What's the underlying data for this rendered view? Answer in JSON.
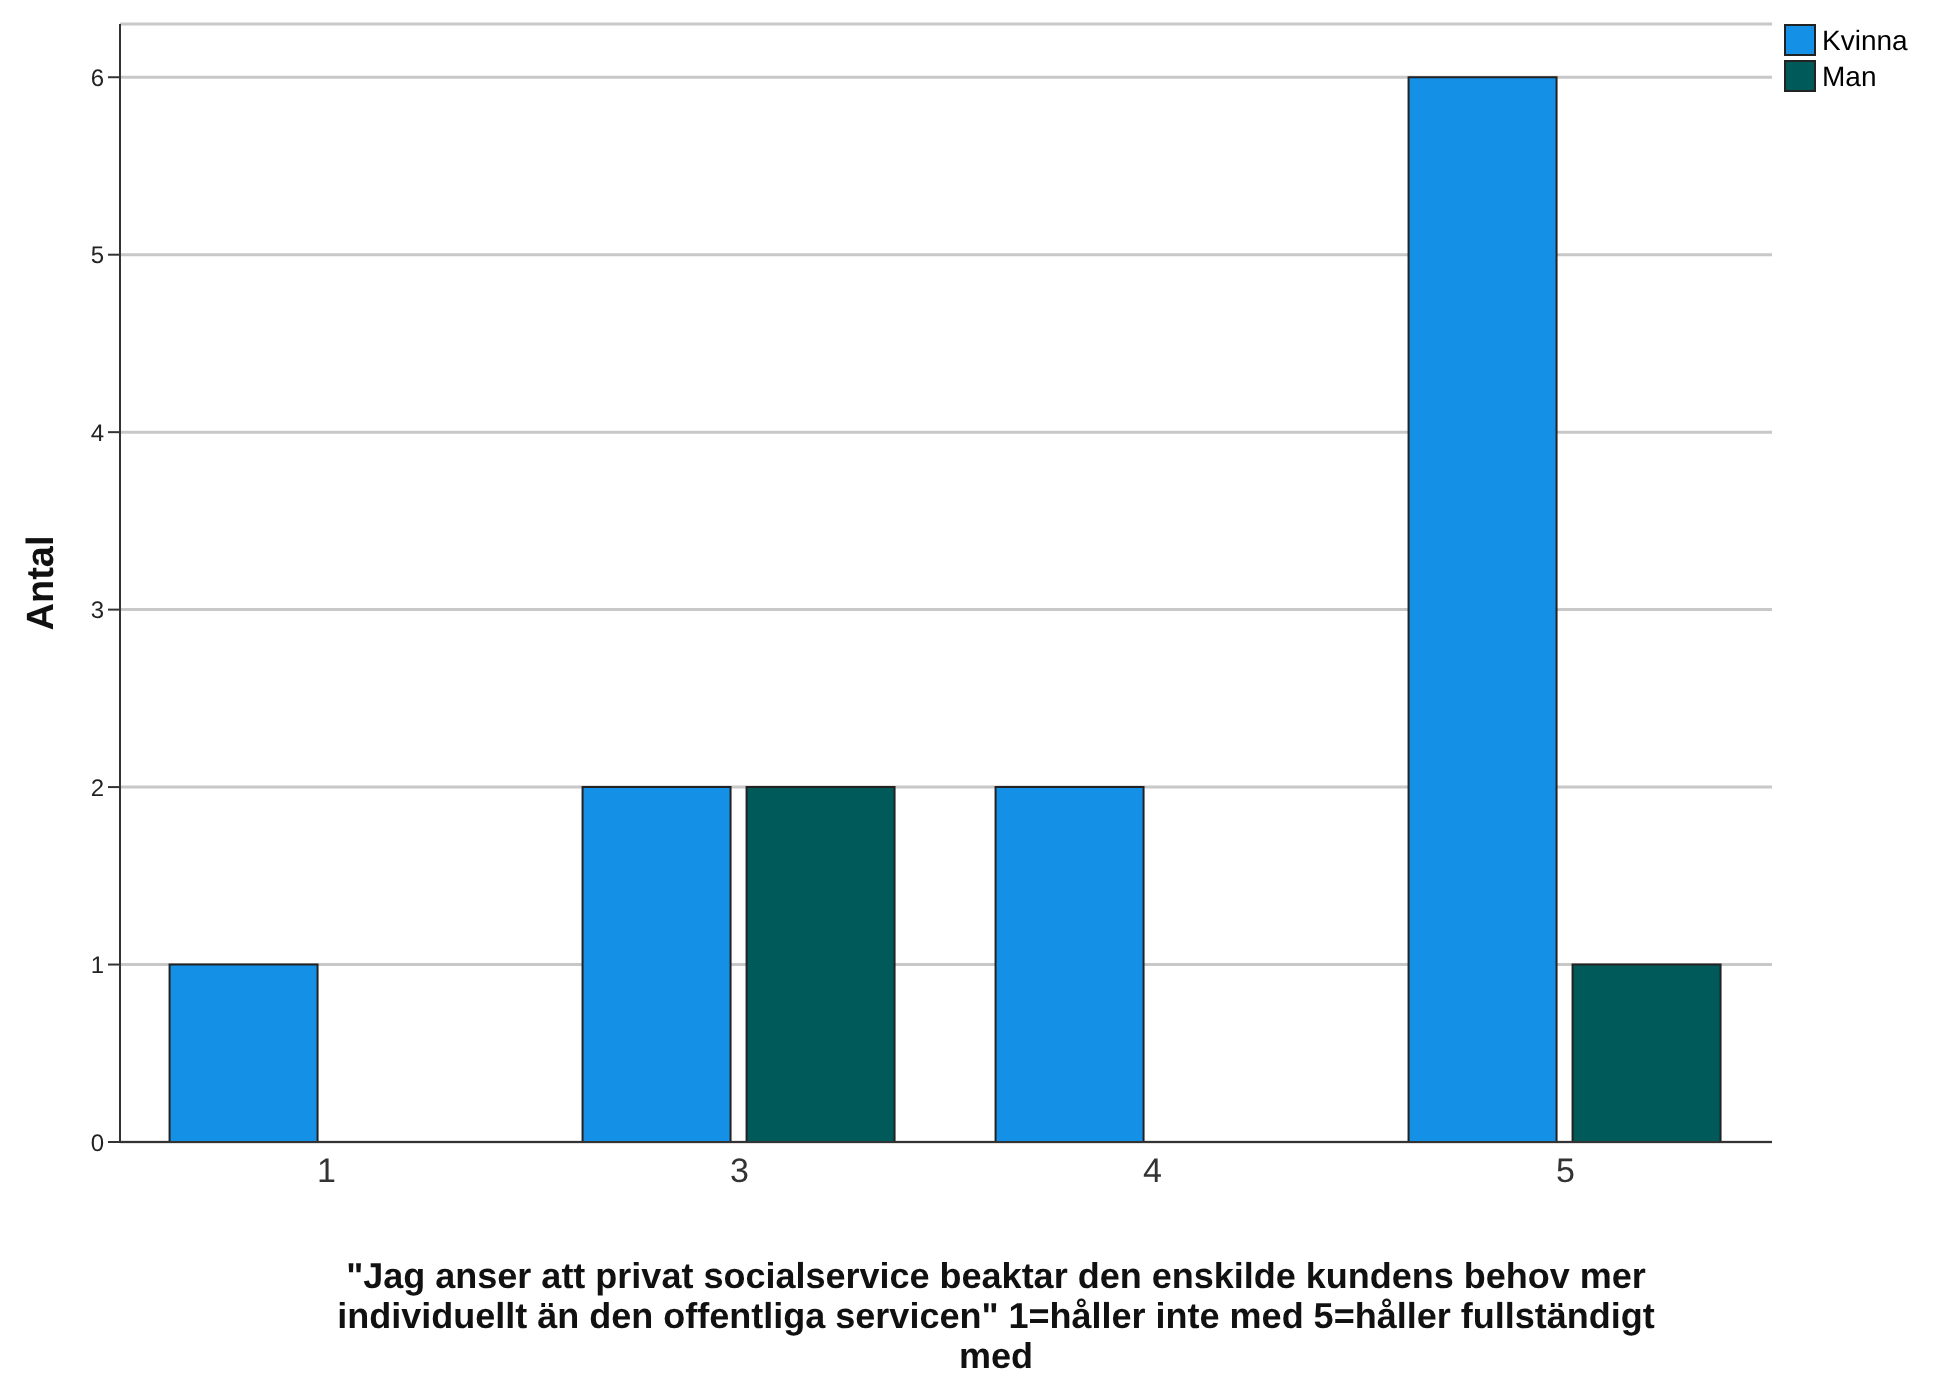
{
  "chart_data": {
    "type": "bar",
    "xlabel": "\"Jag anser att privat socialservice beaktar den enskilde kundens behov mer individuellt än den offentliga servicen\" 1=håller inte med 5=håller fullständigt med",
    "ylabel": "Antal",
    "categories": [
      "1",
      "3",
      "4",
      "5"
    ],
    "series": [
      {
        "name": "Kvinna",
        "color": "#1490e6",
        "values": [
          1,
          2,
          2,
          6
        ]
      },
      {
        "name": "Man",
        "color": "#005a5a",
        "values": [
          0,
          2,
          0,
          1
        ]
      }
    ],
    "ylim": [
      0,
      6.3
    ],
    "yticks": [
      0,
      1,
      2,
      3,
      4,
      5,
      6
    ],
    "grid": "y",
    "legend": "top right"
  }
}
